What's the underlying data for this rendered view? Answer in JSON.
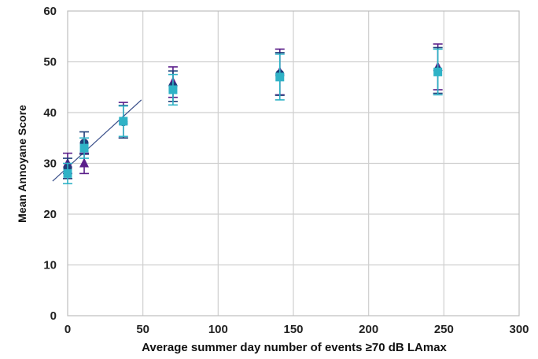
{
  "chart_data": {
    "type": "scatter",
    "title": "",
    "xlabel": "Average summer day number of events ≥70 dB LAmax",
    "ylabel": "Mean Annoyane Score",
    "xlim": [
      0,
      300
    ],
    "ylim": [
      0,
      60
    ],
    "x_ticks": [
      "0",
      "50",
      "100",
      "150",
      "200",
      "250",
      "300"
    ],
    "y_ticks": [
      "0",
      "10",
      "20",
      "30",
      "40",
      "50",
      "60"
    ],
    "grid": true,
    "legend": "none",
    "trendline": {
      "x": [
        -10,
        49
      ],
      "y": [
        26.5,
        42.5
      ],
      "color": "#3a4f8a"
    },
    "series": [
      {
        "marker": "triangle",
        "color": "#5b1f8a",
        "points": [
          {
            "x": 0,
            "y": 30.0,
            "err": 2.0
          },
          {
            "x": 11,
            "y": 30.0,
            "err": 2.0
          },
          {
            "x": 37,
            "y": 38.5,
            "err": 3.5
          },
          {
            "x": 70,
            "y": 46.0,
            "err": 3.0
          },
          {
            "x": 141,
            "y": 48.0,
            "err": 4.5
          },
          {
            "x": 246,
            "y": 49.0,
            "err": 4.5
          }
        ]
      },
      {
        "marker": "circle",
        "color": "#1f3f7a",
        "points": [
          {
            "x": 0,
            "y": 29.0,
            "err": 2.0
          },
          {
            "x": 11,
            "y": 34.0,
            "err": 2.2
          },
          {
            "x": 37,
            "y": 38.2,
            "err": 3.2
          },
          {
            "x": 70,
            "y": 45.2,
            "err": 3.0
          },
          {
            "x": 141,
            "y": 47.6,
            "err": 4.2
          },
          {
            "x": 246,
            "y": 48.3,
            "err": 4.5
          }
        ]
      },
      {
        "marker": "square",
        "color": "#2fb2c6",
        "points": [
          {
            "x": 0,
            "y": 28.0,
            "err": 2.0
          },
          {
            "x": 11,
            "y": 33.0,
            "err": 2.0
          },
          {
            "x": 37,
            "y": 38.3,
            "err": 3.0
          },
          {
            "x": 70,
            "y": 44.5,
            "err": 3.0
          },
          {
            "x": 141,
            "y": 47.0,
            "err": 4.5
          },
          {
            "x": 246,
            "y": 48.0,
            "err": 4.5
          }
        ]
      }
    ]
  }
}
